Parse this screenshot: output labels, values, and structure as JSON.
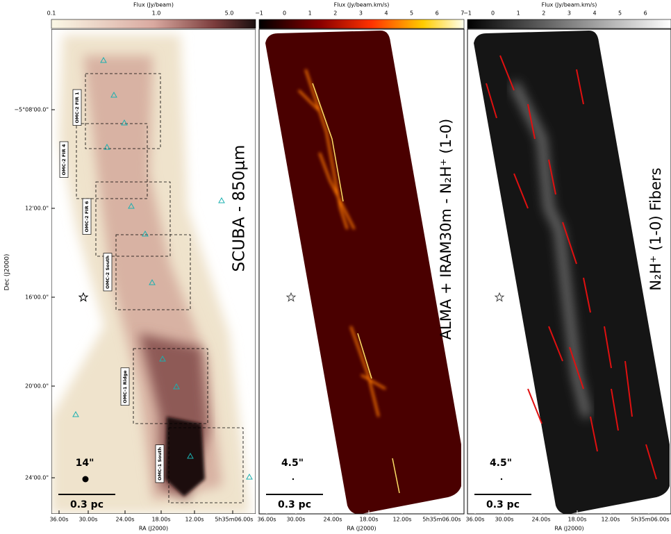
{
  "figure": {
    "y_axis_label": "Dec (J2000)",
    "y_ticks": [
      "−5°08'00.0\"",
      "12'00.0\"",
      "16'00.0\"",
      "20'00.0\"",
      "24'00.0\""
    ],
    "x_axis_label": "RA (J2000)",
    "x_ticks": [
      "36.00s",
      "30.00s",
      "24.00s",
      "18.00s",
      "12.00s",
      "5h35m06.00s"
    ],
    "panels": [
      {
        "colorbar_label": "Flux (Jy/beam)",
        "colorbar_ticks": [
          "0.1",
          "1.0",
          "5.0"
        ],
        "title": "SCUBA - 850μm",
        "beam_label": "14\"",
        "scale_label": "0.3 pc",
        "regions": [
          "OMC-2 FIR 1",
          "OMC-2 FIR 4",
          "OMC-2 FIR 6",
          "OMC-2 South",
          "OMC-1 Ridge",
          "OMC-1 South"
        ]
      },
      {
        "colorbar_label": "Flux (Jy/beam.km/s)",
        "colorbar_ticks": [
          "−1",
          "0",
          "1",
          "2",
          "3",
          "4",
          "5",
          "6",
          "7"
        ],
        "title": "ALMA + IRAM30m - N₂H⁺ (1-0)",
        "beam_label": "4.5\"",
        "scale_label": "0.3 pc"
      },
      {
        "colorbar_label": "Flux (Jy/beam.km/s)",
        "colorbar_ticks": [
          "−1",
          "0",
          "1",
          "2",
          "3",
          "4",
          "5",
          "6"
        ],
        "title": "N₂H⁺ (1-0) Fibers",
        "beam_label": "4.5\"",
        "scale_label": "0.3 pc"
      }
    ]
  }
}
